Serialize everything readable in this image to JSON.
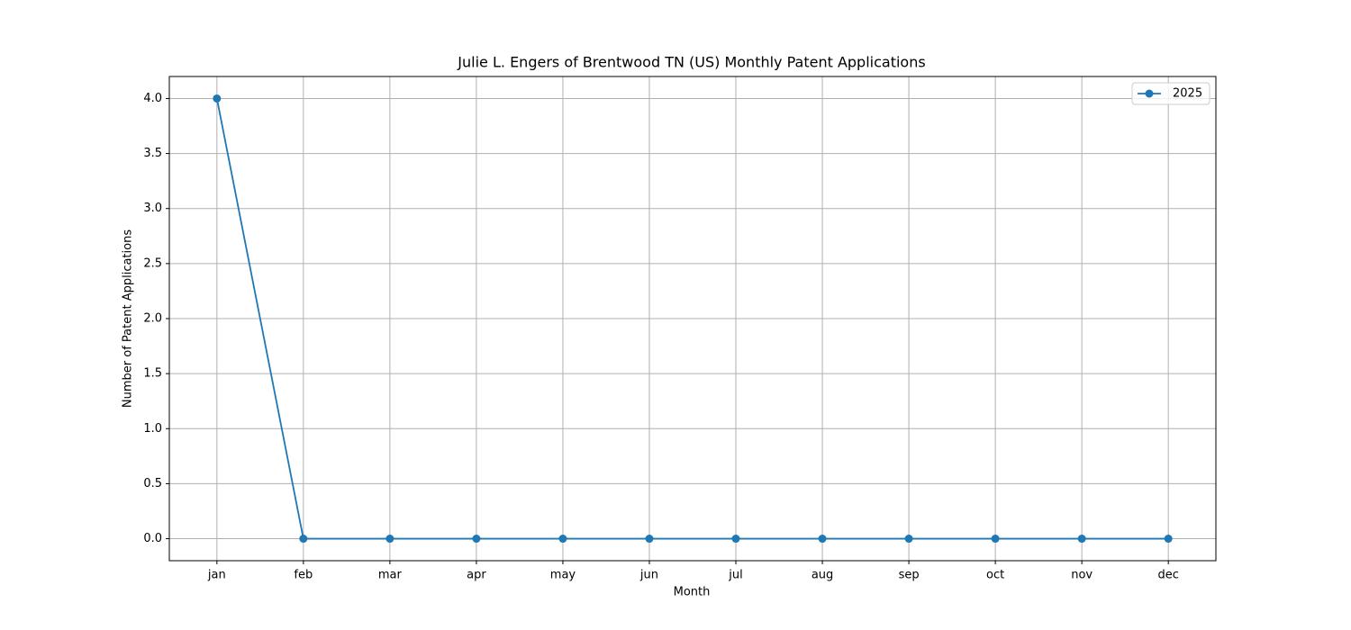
{
  "chart_data": {
    "type": "line",
    "title": "Julie L. Engers of Brentwood TN (US) Monthly Patent Applications",
    "xlabel": "Month",
    "ylabel": "Number of Patent Applications",
    "categories": [
      "jan",
      "feb",
      "mar",
      "apr",
      "may",
      "jun",
      "jul",
      "aug",
      "sep",
      "oct",
      "nov",
      "dec"
    ],
    "series": [
      {
        "name": "2025",
        "color": "#1f77b4",
        "values": [
          4,
          0,
          0,
          0,
          0,
          0,
          0,
          0,
          0,
          0,
          0,
          0
        ]
      }
    ],
    "ylim": [
      -0.2,
      4.2
    ],
    "yticks": [
      {
        "value": 0,
        "label": "0.0"
      },
      {
        "value": 0.5,
        "label": "0.5"
      },
      {
        "value": 1,
        "label": "1.0"
      },
      {
        "value": 1.5,
        "label": "1.5"
      },
      {
        "value": 2,
        "label": "2.0"
      },
      {
        "value": 2.5,
        "label": "2.5"
      },
      {
        "value": 3,
        "label": "3.0"
      },
      {
        "value": 3.5,
        "label": "3.5"
      },
      {
        "value": 4,
        "label": "4.0"
      }
    ],
    "grid": true,
    "legend": "upper right"
  }
}
